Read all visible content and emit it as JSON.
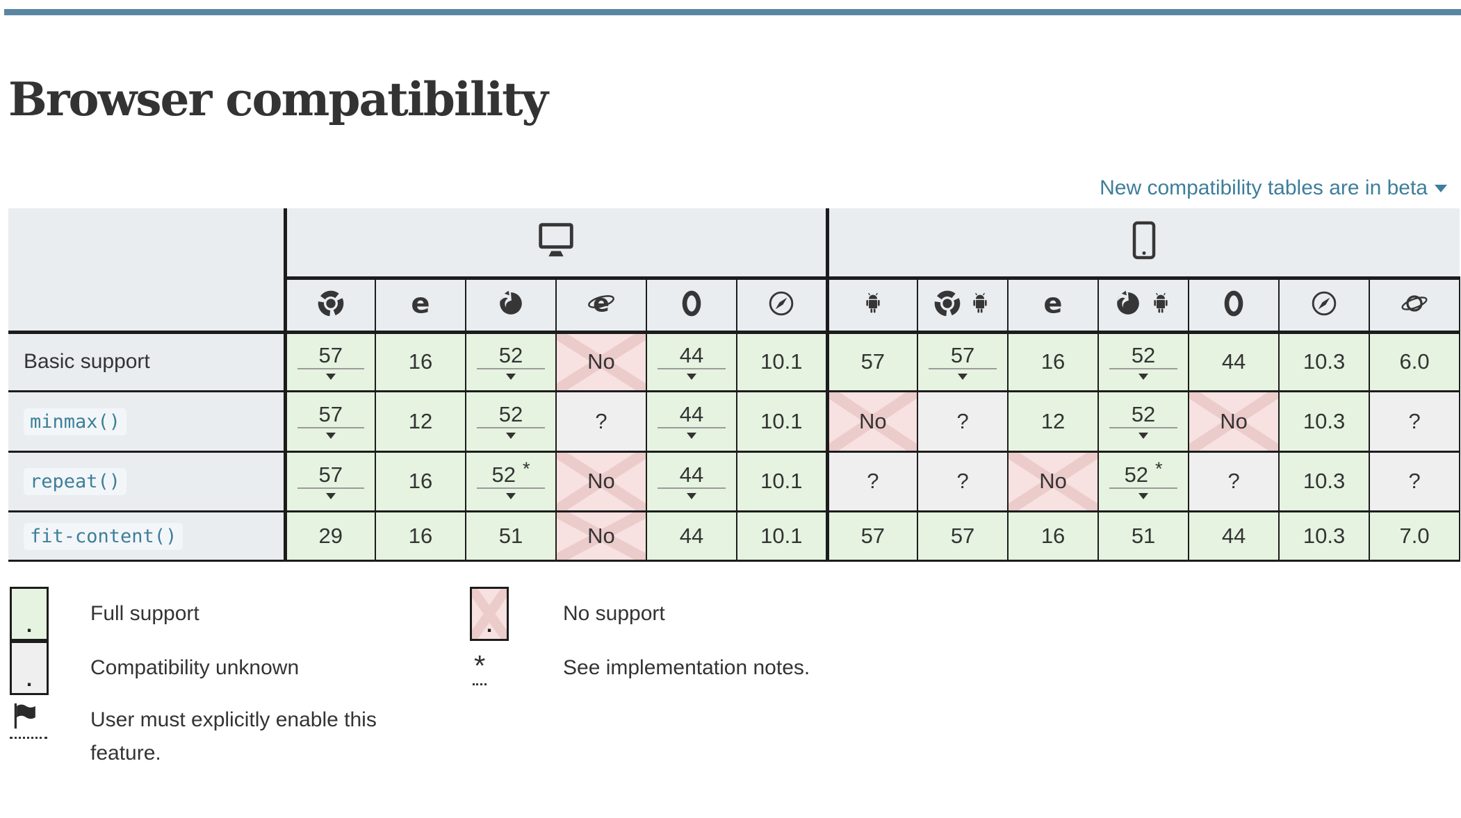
{
  "header": {
    "title": "Browser compatibility"
  },
  "beta": {
    "label": "New compatibility tables are in beta"
  },
  "table": {
    "device_groups": [
      {
        "id": "desktop",
        "icon": "desktop-icon",
        "span": 6
      },
      {
        "id": "mobile",
        "icon": "mobile-icon",
        "span": 7
      }
    ],
    "browsers": [
      {
        "id": "chrome",
        "icons": [
          "chrome-icon"
        ]
      },
      {
        "id": "edge",
        "icons": [
          "edge-icon"
        ]
      },
      {
        "id": "firefox",
        "icons": [
          "firefox-icon"
        ]
      },
      {
        "id": "ie",
        "icons": [
          "ie-icon"
        ]
      },
      {
        "id": "opera",
        "icons": [
          "opera-icon"
        ]
      },
      {
        "id": "safari",
        "icons": [
          "safari-icon"
        ]
      },
      {
        "id": "webview-android",
        "icons": [
          "android-icon"
        ]
      },
      {
        "id": "chrome-android",
        "icons": [
          "chrome-icon",
          "android-icon"
        ]
      },
      {
        "id": "edge-mobile",
        "icons": [
          "edge-icon"
        ]
      },
      {
        "id": "firefox-android",
        "icons": [
          "firefox-icon",
          "android-icon"
        ]
      },
      {
        "id": "opera-android",
        "icons": [
          "opera-icon"
        ]
      },
      {
        "id": "safari-ios",
        "icons": [
          "safari-icon"
        ]
      },
      {
        "id": "samsung-internet",
        "icons": [
          "samsung-icon"
        ]
      }
    ],
    "rows": [
      {
        "feature": "Basic support",
        "code": false,
        "cells": [
          {
            "value": "57",
            "support": "full",
            "history": true
          },
          {
            "value": "16",
            "support": "full"
          },
          {
            "value": "52",
            "support": "full",
            "history": true
          },
          {
            "value": "No",
            "support": "none"
          },
          {
            "value": "44",
            "support": "full",
            "history": true
          },
          {
            "value": "10.1",
            "support": "full"
          },
          {
            "value": "57",
            "support": "full"
          },
          {
            "value": "57",
            "support": "full",
            "history": true
          },
          {
            "value": "16",
            "support": "full"
          },
          {
            "value": "52",
            "support": "full",
            "history": true
          },
          {
            "value": "44",
            "support": "full"
          },
          {
            "value": "10.3",
            "support": "full"
          },
          {
            "value": "6.0",
            "support": "full"
          }
        ]
      },
      {
        "feature": "minmax()",
        "code": true,
        "cells": [
          {
            "value": "57",
            "support": "full",
            "history": true
          },
          {
            "value": "12",
            "support": "full"
          },
          {
            "value": "52",
            "support": "full",
            "history": true
          },
          {
            "value": "?",
            "support": "unknown"
          },
          {
            "value": "44",
            "support": "full",
            "history": true
          },
          {
            "value": "10.1",
            "support": "full"
          },
          {
            "value": "No",
            "support": "none"
          },
          {
            "value": "?",
            "support": "unknown"
          },
          {
            "value": "12",
            "support": "full"
          },
          {
            "value": "52",
            "support": "full",
            "history": true
          },
          {
            "value": "No",
            "support": "none"
          },
          {
            "value": "10.3",
            "support": "full"
          },
          {
            "value": "?",
            "support": "unknown"
          }
        ]
      },
      {
        "feature": "repeat()",
        "code": true,
        "cells": [
          {
            "value": "57",
            "support": "full",
            "history": true
          },
          {
            "value": "16",
            "support": "full"
          },
          {
            "value": "52",
            "support": "full",
            "history": true,
            "note": true
          },
          {
            "value": "No",
            "support": "none"
          },
          {
            "value": "44",
            "support": "full",
            "history": true
          },
          {
            "value": "10.1",
            "support": "full"
          },
          {
            "value": "?",
            "support": "unknown"
          },
          {
            "value": "?",
            "support": "unknown"
          },
          {
            "value": "No",
            "support": "none"
          },
          {
            "value": "52",
            "support": "full",
            "history": true,
            "note": true
          },
          {
            "value": "?",
            "support": "unknown"
          },
          {
            "value": "10.3",
            "support": "full"
          },
          {
            "value": "?",
            "support": "unknown"
          }
        ]
      },
      {
        "feature": "fit-content()",
        "code": true,
        "cells": [
          {
            "value": "29",
            "support": "full"
          },
          {
            "value": "16",
            "support": "full"
          },
          {
            "value": "51",
            "support": "full"
          },
          {
            "value": "No",
            "support": "none"
          },
          {
            "value": "44",
            "support": "full"
          },
          {
            "value": "10.1",
            "support": "full"
          },
          {
            "value": "57",
            "support": "full"
          },
          {
            "value": "57",
            "support": "full"
          },
          {
            "value": "16",
            "support": "full"
          },
          {
            "value": "51",
            "support": "full"
          },
          {
            "value": "44",
            "support": "full"
          },
          {
            "value": "10.3",
            "support": "full"
          },
          {
            "value": "7.0",
            "support": "full"
          }
        ]
      }
    ]
  },
  "legend": {
    "dot": ".",
    "star_symbol": "*",
    "items": [
      {
        "swatch": "full",
        "label": "Full support"
      },
      {
        "swatch": "none",
        "label": "No support"
      },
      {
        "swatch": "unknown",
        "label": "Compatibility unknown"
      },
      {
        "swatch": "star",
        "label": "See implementation notes."
      },
      {
        "swatch": "flag",
        "label": "User must explicitly enable this feature."
      }
    ]
  },
  "colors": {
    "accent_bar": "#5b86a2",
    "link": "#3d7e9a",
    "header_bg": "#e9edf0",
    "full": "#e5f3e0",
    "none_bg": "#f7e1e1",
    "none_x": "#eccbcb",
    "unknown": "#efefef",
    "border": "#1c1c1c",
    "text": "#333333"
  }
}
